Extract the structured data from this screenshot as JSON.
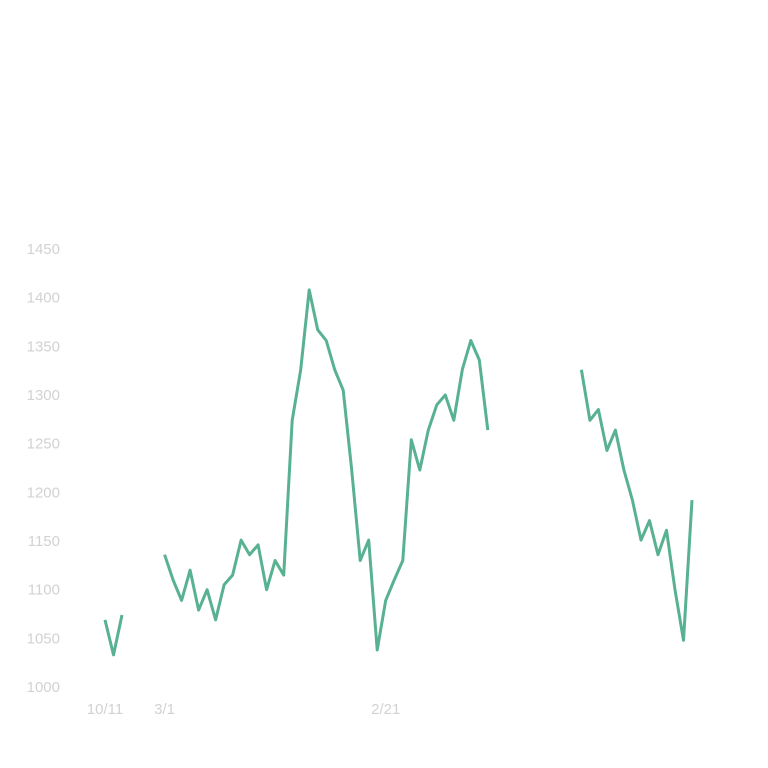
{
  "chart_data": {
    "type": "line",
    "categories": [
      "10/11",
      null,
      null,
      null,
      null,
      null,
      null,
      "3/1",
      null,
      null,
      null,
      null,
      null,
      null,
      null,
      null,
      null,
      null,
      null,
      null,
      null,
      null,
      null,
      null,
      null,
      null,
      null,
      null,
      null,
      null,
      null,
      null,
      null,
      "2/21",
      null,
      null,
      null,
      null,
      null,
      null,
      null,
      null,
      null,
      null,
      null,
      null,
      null,
      null,
      null,
      null,
      null,
      null,
      null,
      null,
      null,
      null,
      null,
      null,
      null,
      null,
      null,
      null,
      null,
      null,
      null,
      null,
      null,
      null,
      null,
      null
    ],
    "series": [
      {
        "color": "#3ba37e",
        "values": [
          1070,
          1034,
          1075,
          null,
          null,
          null,
          null,
          1137,
          1111,
          1090,
          1121,
          1080,
          1101,
          1070,
          1106,
          1116,
          1152,
          1137,
          1147,
          1101,
          1131,
          1116,
          1275,
          1327,
          1409,
          1368,
          1357,
          1327,
          1306,
          1224,
          1131,
          1152,
          1039,
          1090,
          1111,
          1131,
          1255,
          1224,
          1265,
          1291,
          1301,
          1275,
          1327,
          1357,
          1337,
          1265,
          null,
          null,
          null,
          null,
          null,
          null,
          null,
          null,
          null,
          null,
          1327,
          1275,
          1286,
          1244,
          1265,
          1224,
          1193,
          1152,
          1172,
          1137,
          1162,
          1101,
          1049,
          1193
        ]
      }
    ],
    "ylim": [
      1000,
      1450
    ],
    "yticks": [
      1000,
      1050,
      1100,
      1150,
      1200,
      1250,
      1300,
      1350,
      1400,
      1450
    ]
  }
}
